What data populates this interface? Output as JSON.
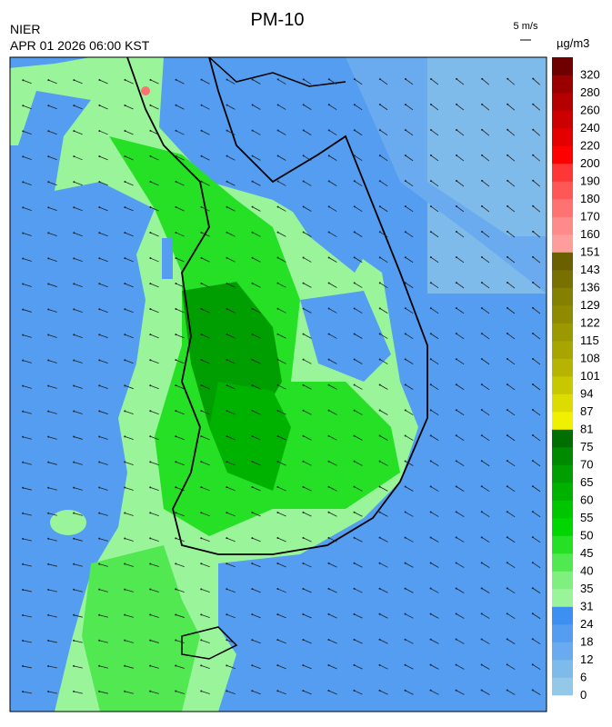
{
  "header": {
    "title": "PM-10",
    "org": "NIER",
    "datetime": "APR 01 2026 06:00 KST",
    "wind_scale": "5 m/s",
    "unit": "µg/m3"
  },
  "colorbar": {
    "ticks": [
      0,
      6,
      12,
      18,
      24,
      31,
      35,
      40,
      45,
      50,
      55,
      60,
      65,
      70,
      75,
      81,
      87,
      94,
      101,
      108,
      115,
      122,
      129,
      136,
      143,
      151,
      160,
      170,
      180,
      190,
      200,
      220,
      240,
      260,
      280,
      320
    ],
    "colors": [
      "#93c8e8",
      "#7fbbea",
      "#6aaaee",
      "#549df1",
      "#3d8ff2",
      "#9af59a",
      "#7ff07f",
      "#52e852",
      "#25e025",
      "#00d600",
      "#00c600",
      "#00b200",
      "#009e00",
      "#008a00",
      "#006e00",
      "#f0f000",
      "#dcdc00",
      "#c8c800",
      "#b6b400",
      "#a8a400",
      "#9c9800",
      "#908a00",
      "#848000",
      "#787000",
      "#6a6000",
      "#ff9d9d",
      "#ff8a8a",
      "#ff7272",
      "#ff5656",
      "#ff3636",
      "#ff0000",
      "#e40000",
      "#cc0000",
      "#b40000",
      "#9a0000",
      "#6e0000"
    ]
  }
}
